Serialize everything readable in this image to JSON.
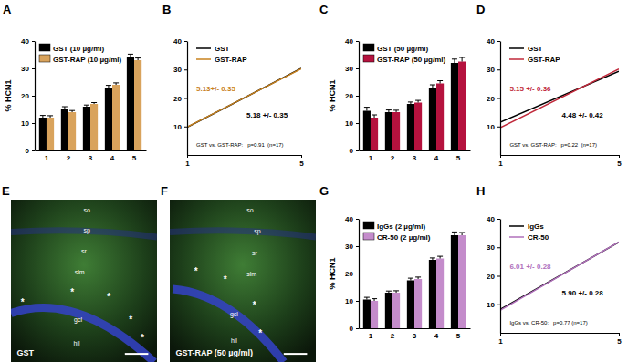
{
  "chart_data": [
    {
      "type": "bar",
      "title": "A",
      "y_label": "% HCN1",
      "categories": [
        "1",
        "2",
        "3",
        "4",
        "5"
      ],
      "series": [
        {
          "name": "GST (10 µg/ml)",
          "color": "#000000",
          "values": [
            12,
            15,
            16,
            23,
            34
          ],
          "errors": [
            0.8,
            1.0,
            0.6,
            0.8,
            1.2
          ]
        },
        {
          "name": "GST-RAP (10 µg/ml)",
          "color": "#d9a35c",
          "values": [
            12,
            14,
            17,
            24,
            33
          ],
          "errors": [
            0.7,
            0.6,
            0.5,
            0.7,
            0.8
          ]
        }
      ],
      "ylim": [
        0,
        40
      ],
      "yticks": [
        0,
        10,
        20,
        30,
        40
      ],
      "legend": "upper-left"
    },
    {
      "type": "line",
      "title": "B",
      "x": [
        1,
        5
      ],
      "series": [
        {
          "name": "GST",
          "color": "#000000",
          "values": [
            9.7,
            30.4
          ]
        },
        {
          "name": "GST-RAP",
          "color": "#c8821e",
          "values": [
            9.8,
            30.3
          ]
        }
      ],
      "xlim": [
        1,
        5
      ],
      "xticks": [
        1,
        5
      ],
      "ylim": [
        0,
        40
      ],
      "yticks": [
        10,
        20,
        30,
        40
      ],
      "legend": "upper-left",
      "annotations": [
        {
          "text": "5.13+/- 0.35",
          "color": "#c8821e"
        },
        {
          "text": "5.18 +/- 0.35",
          "color": "#000000"
        },
        {
          "text": "GST vs. GST-RAP:   p=0.91  (n=17)",
          "color": "#000000"
        }
      ]
    },
    {
      "type": "bar",
      "title": "C",
      "y_label": "% HCN1",
      "categories": [
        "1",
        "2",
        "3",
        "4",
        "5"
      ],
      "series": [
        {
          "name": "GST (50 µg/ml)",
          "color": "#000000",
          "values": [
            14.5,
            14,
            17,
            23,
            32
          ],
          "errors": [
            1.3,
            0.8,
            0.7,
            1.0,
            1.4
          ]
        },
        {
          "name": "GST-RAP (50 µg/ml)",
          "color": "#b5123e",
          "values": [
            12,
            14,
            17.5,
            24.5,
            32.5
          ],
          "errors": [
            1.0,
            0.7,
            0.8,
            1.0,
            1.5
          ]
        }
      ],
      "ylim": [
        0,
        40
      ],
      "yticks": [
        0,
        10,
        20,
        30,
        40
      ],
      "legend": "upper-left"
    },
    {
      "type": "line",
      "title": "D",
      "x": [
        1,
        5
      ],
      "series": [
        {
          "name": "GST",
          "color": "#000000",
          "values": [
            11.5,
            29.4
          ]
        },
        {
          "name": "GST-RAP",
          "color": "#c0283a",
          "values": [
            9.6,
            30.2
          ]
        }
      ],
      "xlim": [
        1,
        5
      ],
      "xticks": [
        1,
        5
      ],
      "ylim": [
        0,
        40
      ],
      "yticks": [
        10,
        20,
        30,
        40
      ],
      "legend": "upper-left",
      "annotations": [
        {
          "text": "5.15 +/- 0.36",
          "color": "#c0283a"
        },
        {
          "text": "4.48 +/- 0.42",
          "color": "#000000"
        },
        {
          "text": "GST vs. GST-RAP:   p=0.22  (n=17)",
          "color": "#000000"
        }
      ]
    },
    {
      "type": "bar",
      "title": "G",
      "y_label": "% HCN1",
      "categories": [
        "1",
        "2",
        "3",
        "4",
        "5"
      ],
      "series": [
        {
          "name": "IgGs (2 µg/ml)",
          "color": "#000000",
          "values": [
            10.5,
            13,
            17.5,
            25,
            34
          ],
          "errors": [
            0.8,
            0.6,
            0.8,
            0.7,
            1.2
          ]
        },
        {
          "name": "CR-50 (2 µg/ml)",
          "color": "#c48ccb",
          "values": [
            10,
            13,
            18,
            25.5,
            34
          ],
          "errors": [
            0.8,
            0.7,
            0.7,
            0.8,
            1.0
          ]
        }
      ],
      "ylim": [
        0,
        40
      ],
      "yticks": [
        0,
        10,
        20,
        30,
        40
      ],
      "legend": "upper-left"
    },
    {
      "type": "line",
      "title": "H",
      "x": [
        1,
        5
      ],
      "series": [
        {
          "name": "IgGs",
          "color": "#000000",
          "values": [
            8.2,
            31.8
          ]
        },
        {
          "name": "CR-50",
          "color": "#b070bb",
          "values": [
            7.9,
            31.9
          ]
        }
      ],
      "xlim": [
        1,
        5
      ],
      "xticks": [
        1,
        5
      ],
      "ylim": [
        0,
        40
      ],
      "yticks": [
        10,
        20,
        30,
        40
      ],
      "legend": "upper-left",
      "annotations": [
        {
          "text": "6.01 +/- 0.28",
          "color": "#b070bb"
        },
        {
          "text": "5.90 +/- 0.28",
          "color": "#000000"
        },
        {
          "text": "IgGs vs. CR-50:   p=0.77 (n=17)",
          "color": "#000000"
        }
      ]
    }
  ],
  "images": [
    {
      "title": "E",
      "labels": [
        "so",
        "sp",
        "sr",
        "slm",
        "gcl",
        "hil"
      ],
      "asterisks": [
        "*",
        "*",
        "*",
        "*",
        "*"
      ],
      "caption": "GST"
    },
    {
      "title": "F",
      "labels": [
        "so",
        "sp",
        "sr",
        "slm",
        "gcl",
        "hil"
      ],
      "asterisks": [
        "*",
        "*",
        "*",
        "*"
      ],
      "caption": "GST-RAP (50 µg/ml)"
    }
  ]
}
